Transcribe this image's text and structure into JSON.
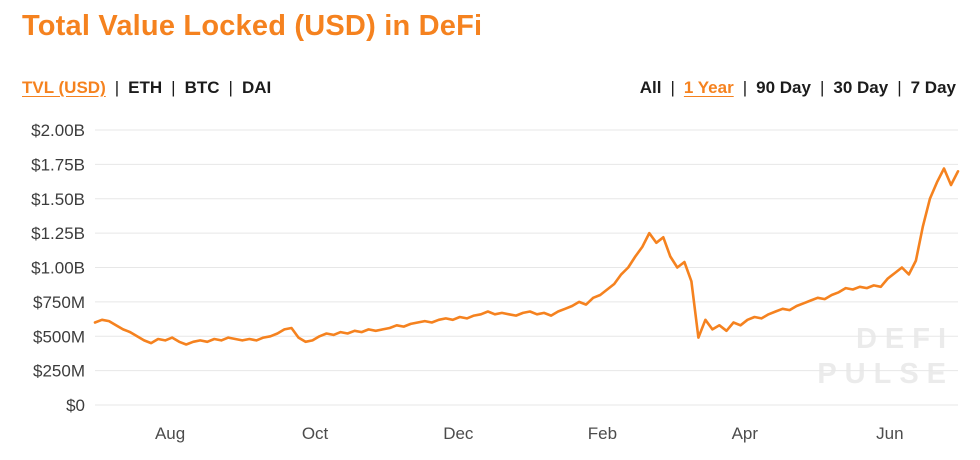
{
  "header": {
    "title": "Total Value Locked (USD) in DeFi"
  },
  "nav": {
    "metrics": [
      {
        "label": "TVL (USD)",
        "active": true
      },
      {
        "label": "ETH",
        "active": false
      },
      {
        "label": "BTC",
        "active": false
      },
      {
        "label": "DAI",
        "active": false
      }
    ],
    "ranges": [
      {
        "label": "All",
        "active": false
      },
      {
        "label": "1 Year",
        "active": true
      },
      {
        "label": "90 Day",
        "active": false
      },
      {
        "label": "30 Day",
        "active": false
      },
      {
        "label": "7 Day",
        "active": false
      }
    ]
  },
  "watermark": {
    "line1": "DEFI",
    "line2": "PULSE"
  },
  "colors": {
    "accent": "#f5821f",
    "line": "#f5821f",
    "grid": "#e7e7e7",
    "axis_text": "#3c3c3c",
    "watermark": "#ebebeb"
  },
  "chart_data": {
    "type": "line",
    "title": "Total Value Locked (USD) in DeFi",
    "xlabel": "",
    "ylabel": "",
    "grid": true,
    "legend": "none",
    "ylim_billions": [
      0,
      2.0
    ],
    "y_ticks": [
      {
        "label": "$2.00B",
        "value": 2.0
      },
      {
        "label": "$1.75B",
        "value": 1.75
      },
      {
        "label": "$1.50B",
        "value": 1.5
      },
      {
        "label": "$1.25B",
        "value": 1.25
      },
      {
        "label": "$1.00B",
        "value": 1.0
      },
      {
        "label": "$750M",
        "value": 0.75
      },
      {
        "label": "$500M",
        "value": 0.5
      },
      {
        "label": "$250M",
        "value": 0.25
      },
      {
        "label": "$0",
        "value": 0.0
      }
    ],
    "x_ticks": [
      {
        "label": "Aug",
        "pos": 0.087
      },
      {
        "label": "Oct",
        "pos": 0.255
      },
      {
        "label": "Dec",
        "pos": 0.421
      },
      {
        "label": "Feb",
        "pos": 0.588
      },
      {
        "label": "Apr",
        "pos": 0.753
      },
      {
        "label": "Jun",
        "pos": 0.921
      }
    ],
    "series": [
      {
        "name": "TVL (USD)",
        "unit": "billions USD",
        "values": [
          0.6,
          0.62,
          0.61,
          0.58,
          0.55,
          0.53,
          0.5,
          0.47,
          0.45,
          0.48,
          0.47,
          0.49,
          0.46,
          0.44,
          0.46,
          0.47,
          0.46,
          0.48,
          0.47,
          0.49,
          0.48,
          0.47,
          0.48,
          0.47,
          0.49,
          0.5,
          0.52,
          0.55,
          0.56,
          0.49,
          0.46,
          0.47,
          0.5,
          0.52,
          0.51,
          0.53,
          0.52,
          0.54,
          0.53,
          0.55,
          0.54,
          0.55,
          0.56,
          0.58,
          0.57,
          0.59,
          0.6,
          0.61,
          0.6,
          0.62,
          0.63,
          0.62,
          0.64,
          0.63,
          0.65,
          0.66,
          0.68,
          0.66,
          0.67,
          0.66,
          0.65,
          0.67,
          0.68,
          0.66,
          0.67,
          0.65,
          0.68,
          0.7,
          0.72,
          0.75,
          0.73,
          0.78,
          0.8,
          0.84,
          0.88,
          0.95,
          1.0,
          1.08,
          1.15,
          1.25,
          1.18,
          1.22,
          1.08,
          1.0,
          1.04,
          0.9,
          0.49,
          0.62,
          0.55,
          0.58,
          0.54,
          0.6,
          0.58,
          0.62,
          0.64,
          0.63,
          0.66,
          0.68,
          0.7,
          0.69,
          0.72,
          0.74,
          0.76,
          0.78,
          0.77,
          0.8,
          0.82,
          0.85,
          0.84,
          0.86,
          0.85,
          0.87,
          0.86,
          0.92,
          0.96,
          1.0,
          0.95,
          1.05,
          1.3,
          1.5,
          1.62,
          1.72,
          1.6,
          1.7
        ]
      }
    ]
  }
}
